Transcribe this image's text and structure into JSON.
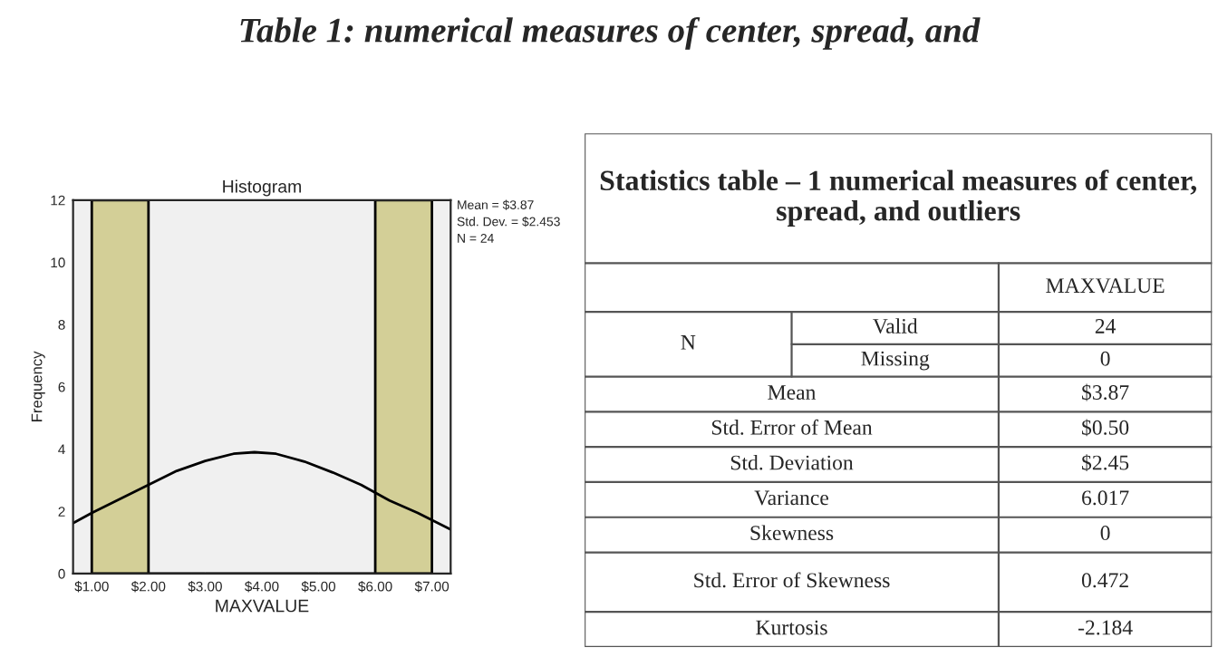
{
  "chart_data": [
    {
      "type": "histogram",
      "title": "Histogram",
      "subtitle": "Table 1: numerical measures of center, spread, and",
      "xlabel": "MAXVALUE",
      "ylabel": "Frequency",
      "bins": [
        1,
        2,
        3,
        4,
        5,
        6,
        7
      ],
      "values": [
        12,
        0,
        0,
        0,
        0,
        12
      ],
      "color": "#d3cf97",
      "series": [
        {
          "type": "line",
          "color": "#000000",
          "x": [
            0.67,
            1.0,
            1.5,
            2.0,
            2.5,
            3.0,
            3.5,
            3.87,
            4.25,
            4.75,
            5.25,
            5.75,
            6.25,
            6.75,
            7.33
          ],
          "values": [
            1.62,
            1.95,
            2.4,
            2.85,
            3.3,
            3.62,
            3.85,
            3.9,
            3.85,
            3.6,
            3.25,
            2.85,
            2.35,
            1.95,
            1.42
          ]
        }
      ],
      "xlim": [
        0.67,
        7.33
      ],
      "ylim": [
        0,
        12
      ],
      "xticks": [
        {
          "value": 1,
          "label": "$1.00"
        },
        {
          "value": 2,
          "label": "$2.00"
        },
        {
          "value": 3,
          "label": "$3.00"
        },
        {
          "value": 4,
          "label": "$4.00"
        },
        {
          "value": 5,
          "label": "$5.00"
        },
        {
          "value": 6,
          "label": "$6.00"
        },
        {
          "value": 7,
          "label": "$7.00"
        }
      ],
      "yticks": [
        0,
        2,
        4,
        6,
        8,
        10,
        12
      ],
      "grid": false,
      "annotations": [
        "Mean = $3.87",
        "Std. Dev. = $2.453",
        "N = 24"
      ]
    },
    {
      "type": "other",
      "title": "Statistics table – 1 numerical measures of center, spread, and outliers",
      "annotations": [
        "MAXVALUE",
        "N",
        "Valid",
        "24",
        "Missing",
        "0",
        "Mean",
        "$3.87",
        "Std. Error of Mean",
        "$0.50",
        "Std. Deviation",
        "$2.45",
        "Variance",
        "6.017",
        "Skewness",
        "0",
        "Std. Error of Skewness",
        "0.472",
        "Kurtosis",
        "-2.184"
      ]
    }
  ]
}
